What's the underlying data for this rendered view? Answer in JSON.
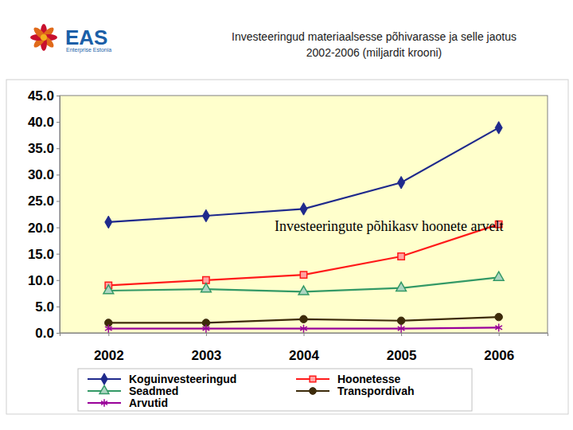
{
  "logo": {
    "name": "EAS",
    "tagline": "Enterprise Estonia"
  },
  "chart_data": {
    "type": "line",
    "title": "Investeeringud materiaalsesse põhivarasse ja selle jaotus 2002-2006 (miljardit krooni)",
    "annotations": [
      "Investeeringute põhikasv hoonete arvelt"
    ],
    "categories": [
      "2002",
      "2003",
      "2004",
      "2005",
      "2006"
    ],
    "series": [
      {
        "name": "Koguinvesteeringud",
        "color": "#1f2a8c",
        "marker": "diamond",
        "values": [
          21.0,
          22.2,
          23.5,
          28.5,
          38.9
        ]
      },
      {
        "name": "Hoonetesse",
        "color": "#ff1a1a",
        "marker": "square",
        "values": [
          9.0,
          10.0,
          11.0,
          14.5,
          20.6
        ]
      },
      {
        "name": "Seadmed",
        "color": "#339966",
        "marker": "triangle",
        "values": [
          8.0,
          8.3,
          7.8,
          8.5,
          10.5
        ]
      },
      {
        "name": "Transpordivah",
        "color": "#3d2b0a",
        "marker": "circle",
        "values": [
          1.9,
          1.9,
          2.6,
          2.3,
          3.0
        ]
      },
      {
        "name": "Arvutid",
        "color": "#990099",
        "marker": "star",
        "values": [
          0.8,
          0.8,
          0.8,
          0.8,
          1.0
        ]
      }
    ],
    "ylim": [
      0,
      45
    ],
    "yticks": [
      {
        "value": 0,
        "label": "0.0"
      },
      {
        "value": 5,
        "label": "5.0"
      },
      {
        "value": 10,
        "label": "10.0"
      },
      {
        "value": 15,
        "label": "15.0"
      },
      {
        "value": 20,
        "label": "20.0"
      },
      {
        "value": 25,
        "label": "25.0"
      },
      {
        "value": 30,
        "label": "30.0"
      },
      {
        "value": 35,
        "label": "35.0"
      },
      {
        "value": 40,
        "label": "40.0"
      },
      {
        "value": 45,
        "label": "45.0"
      }
    ],
    "grid": false,
    "legend": "bottom"
  }
}
